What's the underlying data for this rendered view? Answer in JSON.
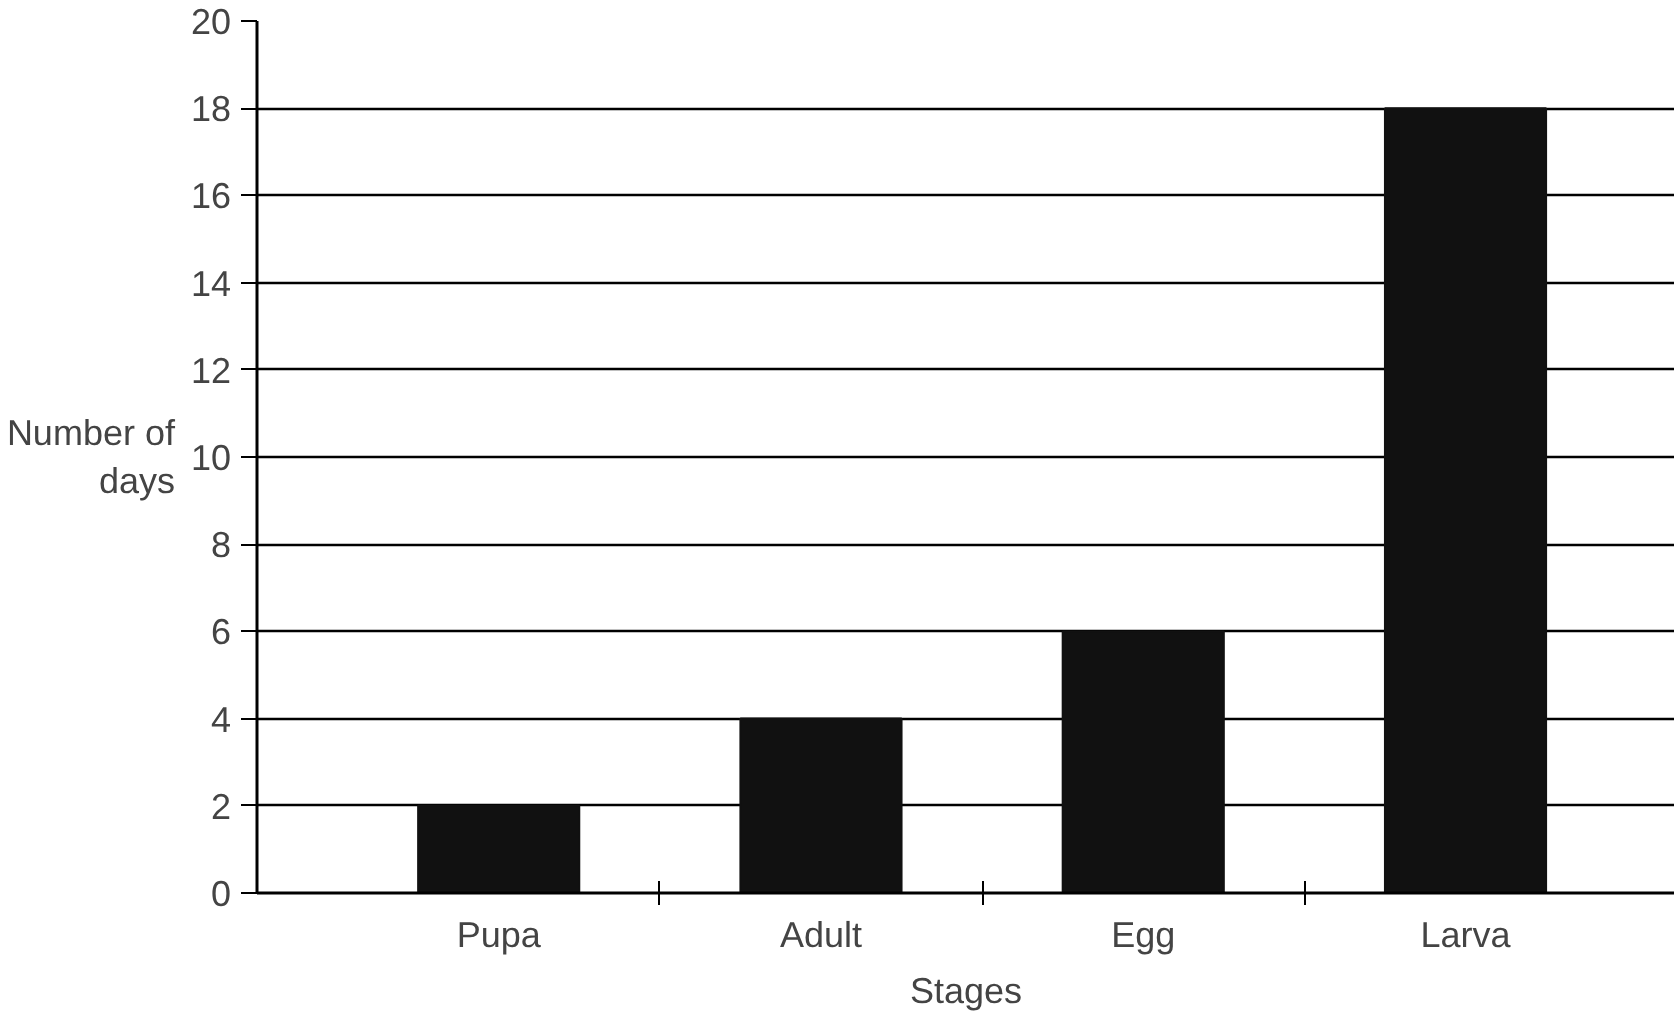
{
  "chart_data": {
    "type": "bar",
    "xlabel": "Stages",
    "ylabel": "Number of days",
    "categories": [
      "Pupa",
      "Adult",
      "Egg",
      "Larva"
    ],
    "values": [
      2,
      4,
      6,
      18
    ],
    "color": "#111111",
    "ylim": [
      0,
      20
    ],
    "yticks": [
      0,
      2,
      4,
      6,
      8,
      10,
      12,
      14,
      16,
      18,
      20
    ],
    "grid": "y"
  }
}
